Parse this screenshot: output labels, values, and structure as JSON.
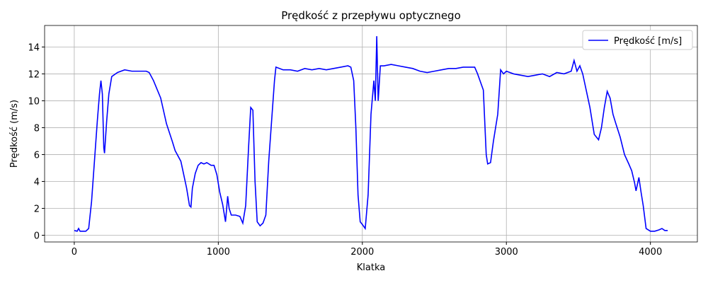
{
  "chart_data": {
    "type": "line",
    "title": "Prędkość z przepływu optycznego",
    "x_label": "Klatka",
    "y_label": "Prędkość (m/s)",
    "x": [
      0,
      20,
      30,
      40,
      60,
      80,
      100,
      120,
      140,
      160,
      175,
      185,
      195,
      205,
      210,
      225,
      240,
      260,
      300,
      350,
      400,
      450,
      500,
      520,
      550,
      600,
      640,
      680,
      700,
      740,
      760,
      780,
      800,
      810,
      820,
      840,
      860,
      880,
      900,
      920,
      950,
      970,
      990,
      1010,
      1030,
      1050,
      1065,
      1075,
      1090,
      1120,
      1150,
      1170,
      1190,
      1210,
      1225,
      1240,
      1255,
      1270,
      1290,
      1310,
      1330,
      1350,
      1370,
      1390,
      1400,
      1450,
      1500,
      1550,
      1600,
      1650,
      1700,
      1750,
      1800,
      1850,
      1900,
      1920,
      1940,
      1955,
      1970,
      1985,
      2000,
      2020,
      2040,
      2060,
      2080,
      2090,
      2100,
      2110,
      2125,
      2150,
      2200,
      2250,
      2300,
      2350,
      2400,
      2450,
      2500,
      2550,
      2600,
      2650,
      2700,
      2750,
      2780,
      2800,
      2840,
      2860,
      2870,
      2890,
      2910,
      2940,
      2960,
      2980,
      3000,
      3050,
      3100,
      3150,
      3200,
      3250,
      3300,
      3350,
      3400,
      3450,
      3470,
      3490,
      3510,
      3530,
      3560,
      3580,
      3610,
      3640,
      3660,
      3680,
      3700,
      3720,
      3740,
      3760,
      3790,
      3820,
      3850,
      3870,
      3890,
      3900,
      3920,
      3935,
      3950,
      3970,
      4000,
      4030,
      4060,
      4080,
      4100,
      4120
    ],
    "series": [
      {
        "name": "Prędkość [m/s]",
        "color": "#0000ff",
        "values": [
          0.35,
          0.3,
          0.5,
          0.3,
          0.3,
          0.3,
          0.5,
          2.5,
          5.5,
          8.5,
          10.5,
          11.5,
          10.5,
          6.5,
          6.1,
          8.5,
          10.5,
          11.8,
          12.1,
          12.3,
          12.2,
          12.2,
          12.2,
          12.1,
          11.5,
          10.2,
          8.3,
          7.0,
          6.3,
          5.5,
          4.5,
          3.5,
          2.2,
          2.1,
          3.5,
          4.6,
          5.2,
          5.4,
          5.3,
          5.4,
          5.2,
          5.2,
          4.5,
          3.2,
          2.3,
          1.0,
          2.9,
          2.0,
          1.5,
          1.5,
          1.4,
          0.9,
          2.2,
          6.5,
          9.5,
          9.3,
          4.0,
          1.0,
          0.7,
          0.9,
          1.5,
          5.5,
          8.5,
          11.5,
          12.5,
          12.3,
          12.3,
          12.2,
          12.4,
          12.3,
          12.4,
          12.3,
          12.4,
          12.5,
          12.6,
          12.5,
          11.5,
          8.0,
          3.0,
          1.0,
          0.8,
          0.5,
          3.0,
          9.0,
          11.5,
          10.0,
          14.8,
          10.0,
          12.6,
          12.6,
          12.7,
          12.6,
          12.5,
          12.4,
          12.2,
          12.1,
          12.2,
          12.3,
          12.4,
          12.4,
          12.5,
          12.5,
          12.5,
          12.0,
          10.8,
          6.0,
          5.3,
          5.4,
          7.0,
          9.0,
          12.3,
          12.0,
          12.2,
          12.0,
          11.9,
          11.8,
          11.9,
          12.0,
          11.8,
          12.1,
          12.0,
          12.2,
          13.0,
          12.2,
          12.6,
          12.0,
          10.5,
          9.5,
          7.5,
          7.1,
          8.0,
          9.5,
          10.7,
          10.2,
          9.0,
          8.3,
          7.3,
          6.0,
          5.3,
          4.8,
          3.9,
          3.3,
          4.3,
          3.2,
          2.2,
          0.5,
          0.3,
          0.3,
          0.4,
          0.5,
          0.35,
          0.35
        ]
      }
    ],
    "xlim": [
      -206,
      4326
    ],
    "ylim": [
      -0.5,
      15.6
    ],
    "xticks": [
      0,
      1000,
      2000,
      3000,
      4000
    ],
    "yticks": [
      0,
      2,
      4,
      6,
      8,
      10,
      12,
      14
    ],
    "grid": true,
    "legend": "upper right"
  }
}
